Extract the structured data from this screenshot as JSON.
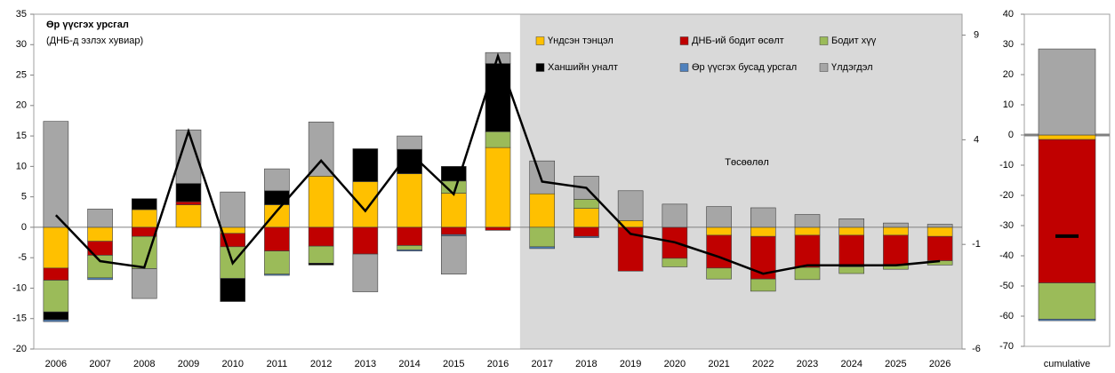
{
  "chart_data": [
    {
      "type": "bar",
      "title": "Өр үүсгэх урсгал",
      "subtitle": "(ДНБ-д эзлэх хувиар)",
      "annotation": "Төсөөлөл",
      "projection_start": "2017",
      "stacked": true,
      "categories": [
        "2006",
        "2007",
        "2008",
        "2009",
        "2010",
        "2011",
        "2012",
        "2013",
        "2014",
        "2015",
        "2016",
        "2017",
        "2018",
        "2019",
        "2020",
        "2021",
        "2022",
        "2023",
        "2024",
        "2025",
        "2026"
      ],
      "series": [
        {
          "name": "Үндсэн тэнцэл",
          "color": "#ffc000",
          "values": [
            -6.7,
            -2.3,
            2.9,
            3.7,
            -1,
            3.7,
            8.4,
            7.5,
            8.8,
            5.6,
            13.1,
            5.5,
            3.1,
            1.1,
            0,
            -1.3,
            -1.5,
            -1.3,
            -1.3,
            -1.3,
            -1.5
          ]
        },
        {
          "name": "ДНБ-ий бодит өсөлт",
          "color": "#c00000",
          "values": [
            -2,
            -2.3,
            -1.5,
            0.5,
            -2.2,
            -3.9,
            -3.1,
            -4.4,
            -3,
            -1.2,
            -0.5,
            0,
            -1.5,
            -7.2,
            -5.1,
            -5.4,
            -7,
            -5.3,
            -5.2,
            -4.8,
            -4
          ]
        },
        {
          "name": "Бодит хүү",
          "color": "#9bbb59",
          "values": [
            -5.2,
            -3.7,
            -5.3,
            0,
            -5.2,
            -3.8,
            -2.8,
            0,
            -0.7,
            2,
            2.6,
            -3.2,
            1.5,
            0,
            -1.4,
            -1.8,
            -2,
            -2,
            -1.1,
            -0.8,
            -0.7
          ]
        },
        {
          "name": "Ханшийн уналт",
          "color": "#000000",
          "values": [
            -1.3,
            0,
            1.8,
            3,
            -3.8,
            2.3,
            -0.3,
            5.4,
            4,
            2.4,
            11.2,
            0,
            0,
            0,
            0,
            0,
            0,
            0,
            0,
            0,
            0
          ]
        },
        {
          "name": "Өр үүсгэх бусад урсгал",
          "color": "#4f81bd",
          "values": [
            -0.3,
            -0.3,
            0,
            0,
            0,
            -0.2,
            0,
            0,
            -0.2,
            -0.2,
            0,
            -0.3,
            -0.2,
            0,
            0,
            0,
            0,
            0,
            0,
            0,
            0
          ]
        },
        {
          "name": "Үлдэгдэл",
          "color": "#a6a6a6",
          "values": [
            17.4,
            3,
            -4.9,
            8.8,
            5.8,
            3.6,
            8.9,
            -6.2,
            2.2,
            -6.3,
            1.8,
            5.4,
            3.8,
            4.9,
            3.8,
            3.4,
            3.2,
            2.1,
            1.4,
            0.7,
            0.5
          ]
        }
      ],
      "line": {
        "color": "#000000",
        "axis": "y2",
        "values": [
          0.4,
          -1.8,
          -2.1,
          4.4,
          -1.9,
          0.6,
          3.0,
          0.6,
          3.4,
          1.4,
          8.0,
          2.0,
          1.7,
          -0.5,
          -0.9,
          -1.6,
          -2.4,
          -2.0,
          -2.0,
          -2.0,
          -1.8
        ]
      },
      "ylim": [
        -20,
        35
      ],
      "yticks": [
        -20,
        -15,
        -10,
        -5,
        0,
        5,
        10,
        15,
        20,
        25,
        30,
        35
      ],
      "y2lim": [
        -6,
        10
      ],
      "y2ticks": [
        -6,
        -1,
        4,
        9
      ]
    },
    {
      "type": "bar",
      "stacked": true,
      "categories": [
        "cumulative"
      ],
      "series": [
        {
          "name": "Үндсэн тэнцэл",
          "color": "#ffc000",
          "values": [
            -1.5
          ]
        },
        {
          "name": "ДНБ-ий бодит өсөлт",
          "color": "#c00000",
          "values": [
            -47.5
          ]
        },
        {
          "name": "Бодит хүү",
          "color": "#9bbb59",
          "values": [
            -12
          ]
        },
        {
          "name": "Өр үүсгэх бусад урсгал",
          "color": "#4f81bd",
          "values": [
            -0.5
          ]
        },
        {
          "name": "Үлдэгдэл",
          "color": "#a6a6a6",
          "values": [
            28.5
          ]
        }
      ],
      "marker": {
        "color": "#000000",
        "values": [
          -33.5
        ]
      },
      "ylim": [
        -70,
        40
      ],
      "yticks": [
        -70,
        -60,
        -50,
        -40,
        -30,
        -20,
        -10,
        0,
        10,
        20,
        30,
        40
      ]
    }
  ]
}
